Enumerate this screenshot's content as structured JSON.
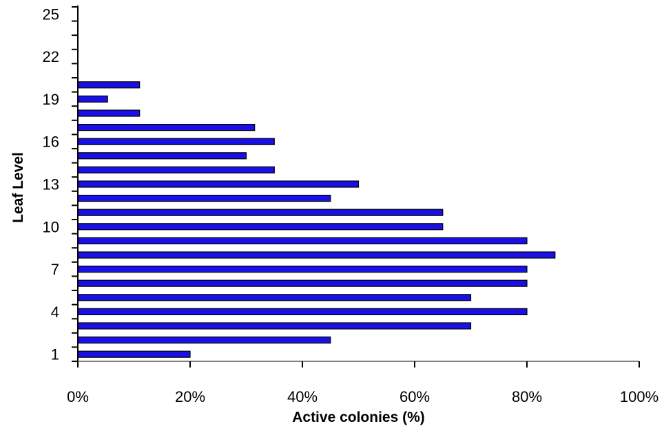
{
  "chart_data": {
    "type": "bar",
    "orientation": "horizontal",
    "title": "",
    "xlabel": "Active colonies (%)",
    "ylabel": "Leaf Level",
    "xlim": [
      0,
      100
    ],
    "ylim": [
      0,
      25
    ],
    "x_ticks": [
      "0%",
      "20%",
      "40%",
      "60%",
      "80%",
      "100%"
    ],
    "y_tick_labels": [
      "1",
      "4",
      "7",
      "10",
      "13",
      "16",
      "19",
      "22",
      "25"
    ],
    "grid": false,
    "legend": "none",
    "colors": {
      "bar_fill": "#1a10e6",
      "bar_stroke": "#000000",
      "axis": "#000000"
    },
    "categories": [
      "1",
      "2",
      "3",
      "4",
      "5",
      "6",
      "7",
      "8",
      "9",
      "10",
      "11",
      "12",
      "13",
      "14",
      "15",
      "16",
      "17",
      "18",
      "19",
      "20"
    ],
    "values": [
      20,
      45,
      70,
      80,
      70,
      80,
      80,
      85,
      80,
      65,
      65,
      45,
      50,
      35,
      30,
      35,
      31.5,
      11,
      5.3,
      11
    ]
  }
}
